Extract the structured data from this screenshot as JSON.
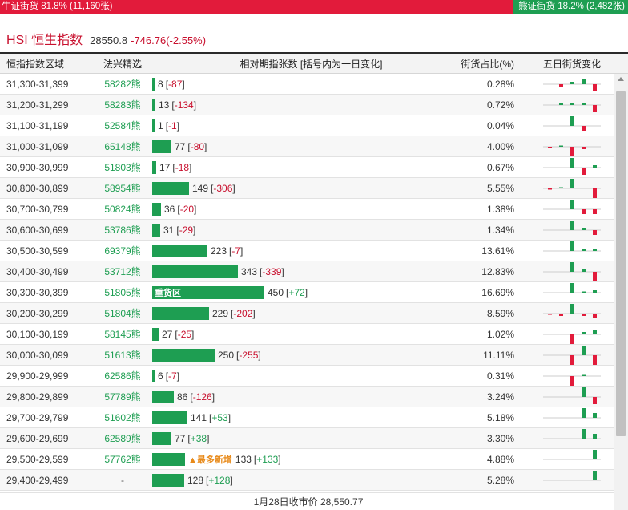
{
  "ratio": {
    "bull_label": "牛证街货 81.8% (11,160张)",
    "bear_label": "熊证街货 18.2% (2,482张)",
    "bull_fraction": 0.818,
    "bull_color": "#e21b3b",
    "bear_color": "#1e9e52"
  },
  "index": {
    "name": "HSI 恒生指数",
    "price": "28550.8",
    "change": "-746.76(-2.55%)"
  },
  "table": {
    "headers": {
      "range": "恒指指数区域",
      "code": "法兴精选",
      "rel": "相对期指张数 [括号内为一日变化]",
      "pct": "街货占比(%)",
      "spark": "五日街货变化"
    },
    "max_count": 450,
    "rows": [
      {
        "range": "31,300-31,399",
        "code": "58282熊",
        "count": 8,
        "count_label": "8",
        "change": "-87",
        "dir": "neg",
        "pct": "0.28%",
        "spark": [
          0,
          -1,
          1,
          2,
          -3
        ]
      },
      {
        "range": "31,200-31,299",
        "code": "58283熊",
        "count": 13,
        "count_label": "13",
        "change": "-134",
        "dir": "neg",
        "pct": "0.72%",
        "spark": [
          0,
          1,
          1,
          1,
          -3
        ]
      },
      {
        "range": "31,100-31,199",
        "code": "52584熊",
        "count": 1,
        "count_label": "1",
        "change": "-1",
        "dir": "neg",
        "pct": "0.04%",
        "spark": [
          0,
          0,
          4,
          -2,
          0
        ]
      },
      {
        "range": "31,000-31,099",
        "code": "65148熊",
        "count": 77,
        "count_label": "77",
        "change": "-80",
        "dir": "neg",
        "pct": "4.00%",
        "spark": [
          -0.5,
          0.5,
          -4,
          -1,
          0
        ]
      },
      {
        "range": "30,900-30,999",
        "code": "51803熊",
        "count": 17,
        "count_label": "17",
        "change": "-18",
        "dir": "neg",
        "pct": "0.67%",
        "spark": [
          0,
          0,
          4,
          -3,
          1
        ]
      },
      {
        "range": "30,800-30,899",
        "code": "58954熊",
        "count": 149,
        "count_label": "149",
        "change": "-306",
        "dir": "neg",
        "pct": "5.55%",
        "spark": [
          -0.5,
          0.5,
          4,
          0,
          -4
        ]
      },
      {
        "range": "30,700-30,799",
        "code": "50824熊",
        "count": 36,
        "count_label": "36",
        "change": "-20",
        "dir": "neg",
        "pct": "1.38%",
        "spark": [
          0,
          0,
          4,
          -2,
          -2
        ]
      },
      {
        "range": "30,600-30,699",
        "code": "53786熊",
        "count": 31,
        "count_label": "31",
        "change": "-29",
        "dir": "neg",
        "pct": "1.34%",
        "spark": [
          0,
          0,
          4,
          1,
          -2
        ]
      },
      {
        "range": "30,500-30,599",
        "code": "69379熊",
        "count": 223,
        "count_label": "223",
        "change": "-7",
        "dir": "neg",
        "pct": "13.61%",
        "spark": [
          0,
          0,
          4,
          1,
          1
        ]
      },
      {
        "range": "30,400-30,499",
        "code": "53712熊",
        "count": 343,
        "count_label": "343",
        "change": "-339",
        "dir": "neg",
        "pct": "12.83%",
        "spark": [
          0,
          0,
          4,
          1,
          -4
        ]
      },
      {
        "range": "30,300-30,399",
        "code": "51805熊",
        "count": 450,
        "count_label": "450",
        "change": "+72",
        "dir": "pos",
        "pct": "16.69%",
        "spark": [
          0,
          0,
          4,
          0.5,
          1
        ],
        "bar_tag": "重货区"
      },
      {
        "range": "30,200-30,299",
        "code": "51804熊",
        "count": 229,
        "count_label": "229",
        "change": "-202",
        "dir": "neg",
        "pct": "8.59%",
        "spark": [
          -0.5,
          -1,
          4,
          -1,
          -2
        ]
      },
      {
        "range": "30,100-30,199",
        "code": "58145熊",
        "count": 27,
        "count_label": "27",
        "change": "-25",
        "dir": "neg",
        "pct": "1.02%",
        "spark": [
          0,
          0,
          -4,
          1,
          2
        ]
      },
      {
        "range": "30,000-30,099",
        "code": "51613熊",
        "count": 250,
        "count_label": "250",
        "change": "-255",
        "dir": "neg",
        "pct": "11.11%",
        "spark": [
          0,
          0,
          -4,
          4,
          -4
        ]
      },
      {
        "range": "29,900-29,999",
        "code": "62586熊",
        "count": 6,
        "count_label": "6",
        "change": "-7",
        "dir": "neg",
        "pct": "0.31%",
        "spark": [
          0,
          0,
          -4,
          0.5,
          0
        ]
      },
      {
        "range": "29,800-29,899",
        "code": "57789熊",
        "count": 86,
        "count_label": "86",
        "change": "-126",
        "dir": "neg",
        "pct": "3.24%",
        "spark": [
          0,
          0,
          0,
          4,
          -3
        ]
      },
      {
        "range": "29,700-29,799",
        "code": "51602熊",
        "count": 141,
        "count_label": "141",
        "change": "+53",
        "dir": "pos",
        "pct": "5.18%",
        "spark": [
          0,
          0,
          0,
          4,
          2
        ]
      },
      {
        "range": "29,600-29,699",
        "code": "62589熊",
        "count": 77,
        "count_label": "77",
        "change": "+38",
        "dir": "pos",
        "pct": "3.30%",
        "spark": [
          0,
          0,
          0,
          4,
          2
        ]
      },
      {
        "range": "29,500-29,599",
        "code": "57762熊",
        "count": 133,
        "count_label": "133",
        "change": "+133",
        "dir": "pos",
        "pct": "4.88%",
        "spark": [
          0,
          0,
          0,
          0,
          4
        ],
        "tag": "最多新增"
      },
      {
        "range": "29,400-29,499",
        "code": "-",
        "count": 128,
        "count_label": "128",
        "change": "+128",
        "dir": "pos",
        "pct": "5.28%",
        "spark": [
          0,
          0,
          0,
          0,
          4
        ]
      }
    ]
  },
  "footer": {
    "close_label": "1月28日收市价 28,550.77"
  },
  "colors": {
    "up": "#1e9e52",
    "down": "#e21b3b",
    "tag": "#e88a1a"
  }
}
